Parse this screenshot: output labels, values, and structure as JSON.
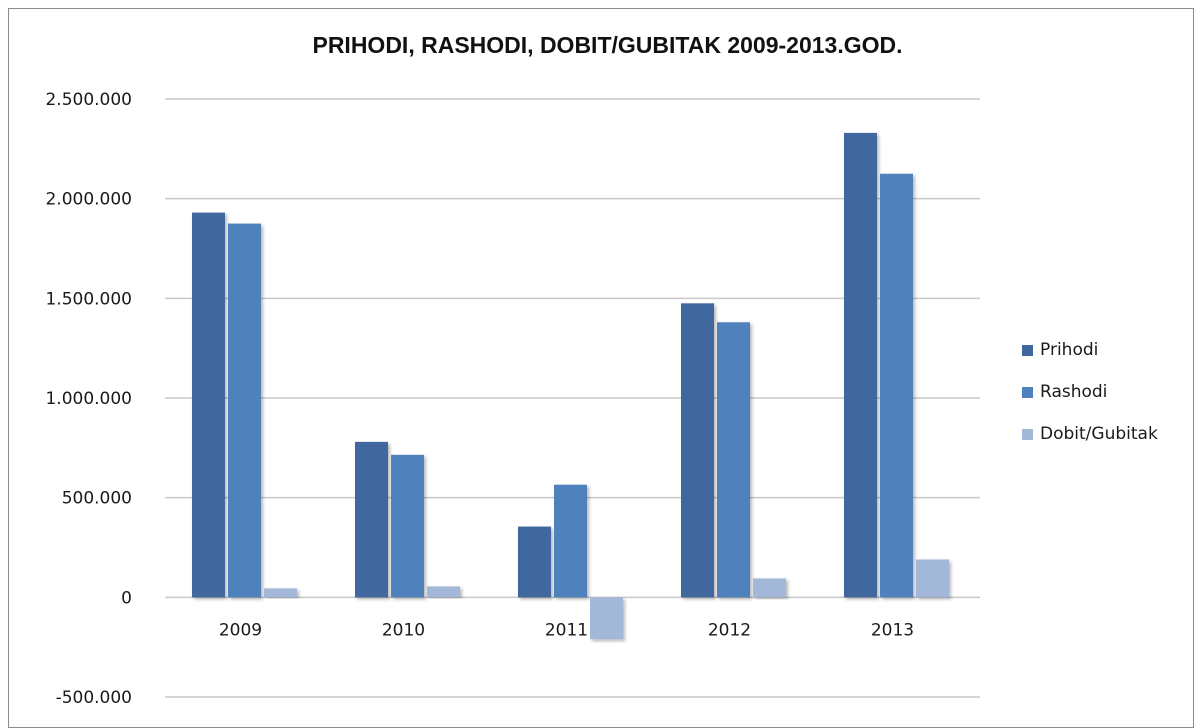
{
  "chart_data": {
    "type": "bar",
    "title": "PRIHODI, RASHODI, DOBIT/GUBITAK 2009-2013.GOD.",
    "categories": [
      "2009",
      "2010",
      "2011",
      "2012",
      "2013"
    ],
    "series": [
      {
        "name": "Prihodi",
        "color": "#3f679e",
        "values": [
          1930000,
          780000,
          355000,
          1475000,
          2330000
        ]
      },
      {
        "name": "Rashodi",
        "color": "#4f81bd",
        "values": [
          1875000,
          715000,
          565000,
          1380000,
          2125000
        ]
      },
      {
        "name": "Dobit/Gubitak",
        "color": "#a3b7d9",
        "values": [
          45000,
          55000,
          -210000,
          95000,
          190000
        ]
      }
    ],
    "y_ticks": [
      "2.500.000",
      "2.000.000",
      "1.500.000",
      "1.000.000",
      "500.000",
      "0",
      "-500.000"
    ],
    "ylim": [
      -500000,
      2500000
    ],
    "xlabel": "",
    "ylabel": "",
    "grid": true,
    "legend_position": "right"
  }
}
